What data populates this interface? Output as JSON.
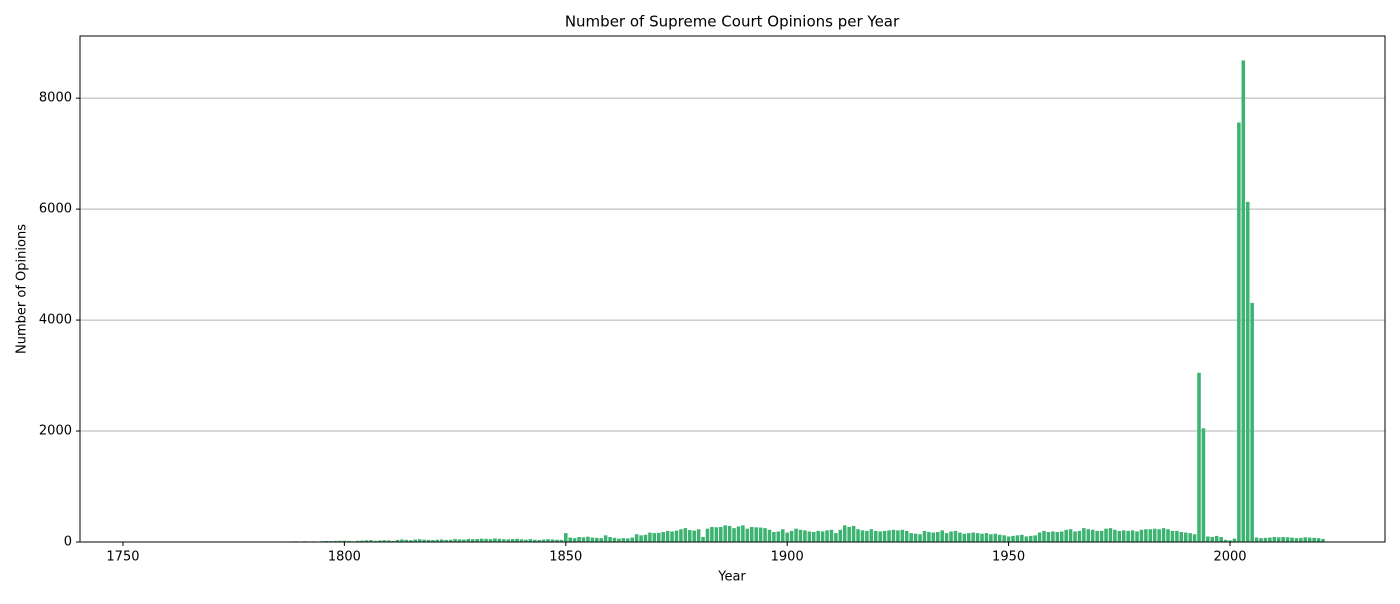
{
  "chart_data": {
    "type": "bar",
    "title": "Number of Supreme Court Opinions per Year",
    "x_label": "Year",
    "y_label": "Number of Opinions",
    "color": "#3cb371",
    "grid": true,
    "xlim": [
      1740.3,
      2035
    ],
    "ylim": [
      0,
      9120
    ],
    "xticks": [
      1750,
      1800,
      1850,
      1900,
      1950,
      2000
    ],
    "yticks": [
      0,
      2000,
      4000,
      6000,
      8000
    ],
    "x": [
      1781,
      1782,
      1783,
      1784,
      1785,
      1786,
      1787,
      1788,
      1789,
      1790,
      1791,
      1792,
      1793,
      1794,
      1795,
      1796,
      1797,
      1798,
      1799,
      1800,
      1801,
      1802,
      1803,
      1804,
      1805,
      1806,
      1807,
      1808,
      1809,
      1810,
      1811,
      1812,
      1813,
      1814,
      1815,
      1816,
      1817,
      1818,
      1819,
      1820,
      1821,
      1822,
      1823,
      1824,
      1825,
      1826,
      1827,
      1828,
      1829,
      1830,
      1831,
      1832,
      1833,
      1834,
      1835,
      1836,
      1837,
      1838,
      1839,
      1840,
      1841,
      1842,
      1843,
      1844,
      1845,
      1846,
      1847,
      1848,
      1849,
      1850,
      1851,
      1852,
      1853,
      1854,
      1855,
      1856,
      1857,
      1858,
      1859,
      1860,
      1861,
      1862,
      1863,
      1864,
      1865,
      1866,
      1867,
      1868,
      1869,
      1870,
      1871,
      1872,
      1873,
      1874,
      1875,
      1876,
      1877,
      1878,
      1879,
      1880,
      1881,
      1882,
      1883,
      1884,
      1885,
      1886,
      1887,
      1888,
      1889,
      1890,
      1891,
      1892,
      1893,
      1894,
      1895,
      1896,
      1897,
      1898,
      1899,
      1900,
      1901,
      1902,
      1903,
      1904,
      1905,
      1906,
      1907,
      1908,
      1909,
      1910,
      1911,
      1912,
      1913,
      1914,
      1915,
      1916,
      1917,
      1918,
      1919,
      1920,
      1921,
      1922,
      1923,
      1924,
      1925,
      1926,
      1927,
      1928,
      1929,
      1930,
      1931,
      1932,
      1933,
      1934,
      1935,
      1936,
      1937,
      1938,
      1939,
      1940,
      1941,
      1942,
      1943,
      1944,
      1945,
      1946,
      1947,
      1948,
      1949,
      1950,
      1951,
      1952,
      1953,
      1954,
      1955,
      1956,
      1957,
      1958,
      1959,
      1960,
      1961,
      1962,
      1963,
      1964,
      1965,
      1966,
      1967,
      1968,
      1969,
      1970,
      1971,
      1972,
      1973,
      1974,
      1975,
      1976,
      1977,
      1978,
      1979,
      1980,
      1981,
      1982,
      1983,
      1984,
      1985,
      1986,
      1987,
      1988,
      1989,
      1990,
      1991,
      1992,
      1993,
      1994,
      1995,
      1996,
      1997,
      1998,
      1999,
      2000,
      2001,
      2002,
      2003,
      2004,
      2005,
      2006,
      2007,
      2008,
      2009,
      2010,
      2011,
      2012,
      2013,
      2014,
      2015,
      2016,
      2017,
      2018,
      2019,
      2020,
      2021
    ],
    "values": [
      3,
      0,
      0,
      2,
      8,
      6,
      5,
      10,
      12,
      8,
      14,
      10,
      12,
      6,
      15,
      18,
      16,
      20,
      22,
      24,
      20,
      12,
      22,
      26,
      30,
      34,
      22,
      28,
      32,
      30,
      20,
      38,
      46,
      40,
      32,
      44,
      50,
      42,
      38,
      36,
      42,
      46,
      38,
      40,
      52,
      48,
      44,
      56,
      50,
      54,
      60,
      56,
      52,
      64,
      58,
      50,
      46,
      54,
      58,
      48,
      42,
      52,
      40,
      36,
      44,
      50,
      46,
      40,
      38,
      160,
      80,
      70,
      90,
      85,
      95,
      80,
      75,
      70,
      120,
      90,
      75,
      60,
      70,
      65,
      80,
      140,
      120,
      130,
      170,
      160,
      165,
      180,
      200,
      190,
      205,
      230,
      250,
      215,
      205,
      230,
      90,
      240,
      270,
      265,
      270,
      300,
      290,
      250,
      280,
      300,
      240,
      270,
      265,
      260,
      250,
      220,
      180,
      190,
      230,
      170,
      200,
      240,
      220,
      210,
      190,
      180,
      200,
      190,
      210,
      220,
      160,
      220,
      300,
      270,
      290,
      230,
      210,
      200,
      230,
      200,
      190,
      200,
      210,
      220,
      210,
      220,
      200,
      160,
      150,
      140,
      200,
      180,
      170,
      180,
      210,
      160,
      190,
      200,
      170,
      150,
      160,
      170,
      160,
      150,
      160,
      140,
      150,
      130,
      120,
      100,
      110,
      120,
      130,
      100,
      110,
      120,
      170,
      200,
      180,
      190,
      180,
      190,
      220,
      230,
      190,
      200,
      250,
      230,
      220,
      200,
      200,
      240,
      250,
      220,
      200,
      210,
      200,
      210,
      190,
      220,
      230,
      230,
      240,
      230,
      250,
      230,
      200,
      200,
      180,
      170,
      160,
      140,
      3050,
      2050,
      100,
      90,
      110,
      90,
      40,
      30,
      60,
      7560,
      8680,
      6130,
      4310,
      80,
      70,
      75,
      80,
      90,
      85,
      90,
      85,
      80,
      70,
      75,
      85,
      80,
      75,
      70,
      55
    ]
  }
}
